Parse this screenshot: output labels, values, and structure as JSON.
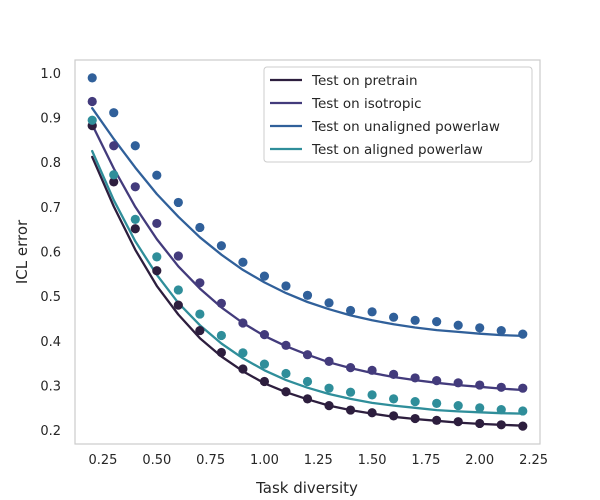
{
  "chart_data": {
    "type": "scatter",
    "xlabel": "Task diversity",
    "ylabel": "ICL error",
    "xlim": [
      0.12,
      2.28
    ],
    "ylim": [
      0.17,
      1.03
    ],
    "x_ticks": [
      0.25,
      0.5,
      0.75,
      1.0,
      1.25,
      1.5,
      1.75,
      2.0,
      2.25
    ],
    "x_tick_labels": [
      "0.25",
      "0.50",
      "0.75",
      "1.00",
      "1.25",
      "1.50",
      "1.75",
      "2.00",
      "2.25"
    ],
    "y_ticks": [
      0.2,
      0.3,
      0.4,
      0.5,
      0.6,
      0.7,
      0.8,
      0.9,
      1.0
    ],
    "y_tick_labels": [
      "0.2",
      "0.3",
      "0.4",
      "0.5",
      "0.6",
      "0.7",
      "0.8",
      "0.9",
      "1.0"
    ],
    "grid": false,
    "legend_position": "top-right",
    "x": [
      0.2,
      0.3,
      0.4,
      0.5,
      0.6,
      0.7,
      0.8,
      0.9,
      1.0,
      1.1,
      1.2,
      1.3,
      1.4,
      1.5,
      1.6,
      1.7,
      1.8,
      1.9,
      2.0,
      2.1,
      2.2
    ],
    "series": [
      {
        "name": "Test on pretrain",
        "color": "#2d1e3e",
        "points": [
          0.883,
          0.757,
          0.652,
          0.558,
          0.481,
          0.424,
          0.375,
          0.338,
          0.31,
          0.287,
          0.271,
          0.256,
          0.246,
          0.24,
          0.233,
          0.227,
          0.223,
          0.22,
          0.216,
          0.213,
          0.21
        ],
        "fit": [
          0.813,
          0.702,
          0.605,
          0.524,
          0.46,
          0.407,
          0.366,
          0.333,
          0.306,
          0.286,
          0.27,
          0.256,
          0.246,
          0.238,
          0.231,
          0.226,
          0.222,
          0.218,
          0.215,
          0.213,
          0.211
        ]
      },
      {
        "name": "Test on isotropic",
        "color": "#433b7c",
        "points": [
          0.937,
          0.838,
          0.746,
          0.664,
          0.591,
          0.531,
          0.485,
          0.441,
          0.415,
          0.391,
          0.37,
          0.355,
          0.341,
          0.335,
          0.326,
          0.318,
          0.312,
          0.307,
          0.302,
          0.297,
          0.295
        ],
        "fit": [
          0.885,
          0.787,
          0.701,
          0.629,
          0.568,
          0.518,
          0.476,
          0.441,
          0.412,
          0.389,
          0.37,
          0.353,
          0.34,
          0.329,
          0.32,
          0.313,
          0.307,
          0.302,
          0.298,
          0.294,
          0.291
        ]
      },
      {
        "name": "Test on unaligned powerlaw",
        "color": "#30609a",
        "points": [
          0.99,
          0.912,
          0.838,
          0.772,
          0.711,
          0.655,
          0.614,
          0.577,
          0.546,
          0.524,
          0.503,
          0.486,
          0.469,
          0.466,
          0.454,
          0.447,
          0.444,
          0.436,
          0.43,
          0.424,
          0.416
        ],
        "fit": [
          0.922,
          0.853,
          0.789,
          0.73,
          0.679,
          0.633,
          0.594,
          0.56,
          0.532,
          0.508,
          0.488,
          0.472,
          0.458,
          0.447,
          0.438,
          0.431,
          0.425,
          0.421,
          0.417,
          0.414,
          0.412
        ]
      },
      {
        "name": "Test on aligned powerlaw",
        "color": "#2f8e9a",
        "points": [
          0.895,
          0.773,
          0.673,
          0.589,
          0.515,
          0.461,
          0.413,
          0.374,
          0.349,
          0.328,
          0.31,
          0.295,
          0.286,
          0.28,
          0.271,
          0.265,
          0.261,
          0.256,
          0.251,
          0.247,
          0.244
        ],
        "fit": [
          0.826,
          0.716,
          0.624,
          0.549,
          0.486,
          0.436,
          0.395,
          0.362,
          0.335,
          0.313,
          0.296,
          0.282,
          0.271,
          0.262,
          0.256,
          0.251,
          0.246,
          0.243,
          0.241,
          0.239,
          0.238
        ]
      }
    ]
  }
}
